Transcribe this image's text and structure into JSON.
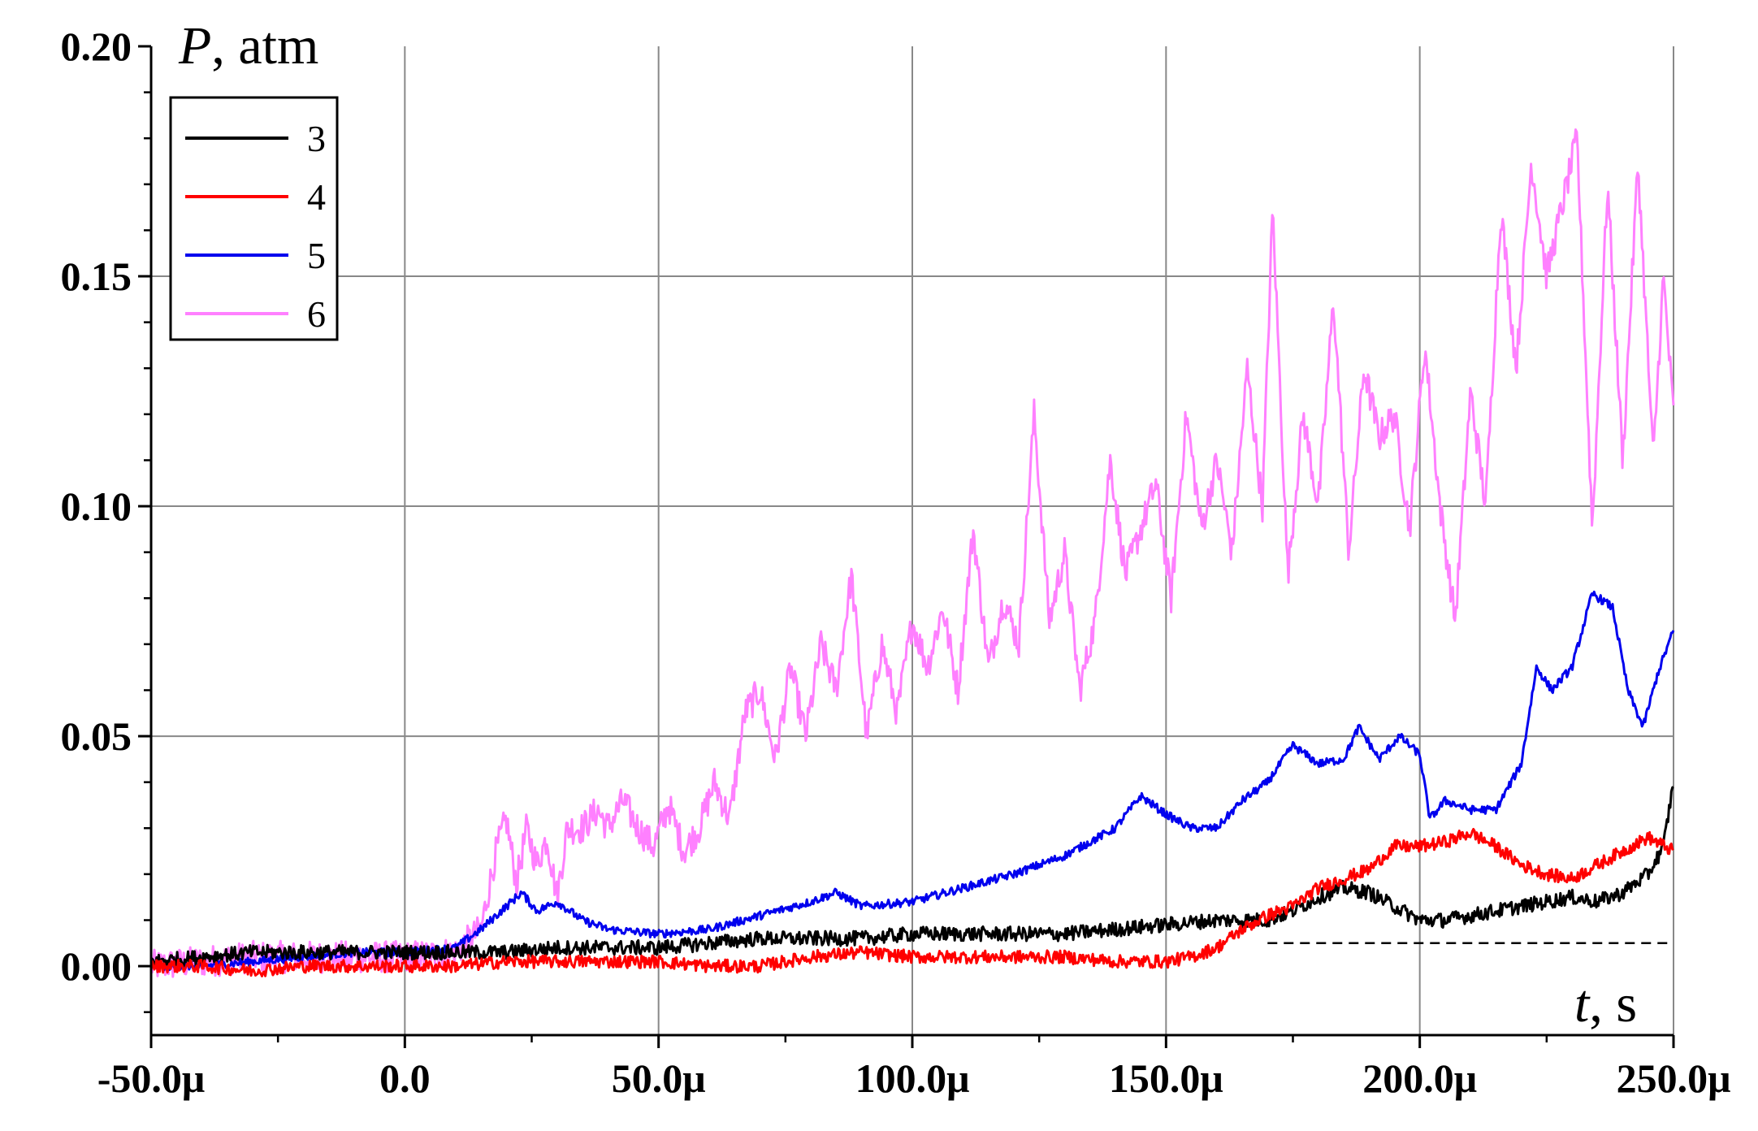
{
  "chart_data": {
    "type": "line",
    "ylabel_symbol": "P",
    "ylabel_unit": ", atm",
    "xlabel_symbol": "t",
    "xlabel_unit": ", s",
    "xlim": [
      -5e-05,
      0.00025
    ],
    "ylim": [
      -0.015,
      0.2
    ],
    "x_ticks": [
      -5e-05,
      0,
      5e-05,
      0.0001,
      0.00015,
      0.0002,
      0.00025
    ],
    "x_tick_labels": [
      "-50.0μ",
      "0.0",
      "50.0μ",
      "100.0μ",
      "150.0μ",
      "200.0μ",
      "250.0μ"
    ],
    "y_ticks": [
      0.0,
      0.05,
      0.1,
      0.15,
      0.2
    ],
    "y_tick_labels": [
      "0.00",
      "0.05",
      "0.10",
      "0.15",
      "0.20"
    ],
    "grid": true,
    "legend_position": "top-left",
    "reference_line": {
      "y": 0.005,
      "style": "dashed",
      "x_from": 0.00017,
      "x_to": 0.00025
    },
    "series": [
      {
        "name": "3",
        "color": "#000000",
        "x_us": [
          -50,
          -40,
          -30,
          -20,
          -10,
          0,
          10,
          20,
          30,
          40,
          50,
          60,
          70,
          80,
          90,
          100,
          110,
          120,
          130,
          140,
          150,
          160,
          170,
          175,
          180,
          185,
          190,
          195,
          200,
          205,
          210,
          215,
          220,
          225,
          230,
          235,
          240,
          245,
          248,
          250
        ],
        "values": [
          0.001,
          0.002,
          0.003,
          0.003,
          0.003,
          0.003,
          0.003,
          0.003,
          0.004,
          0.004,
          0.004,
          0.005,
          0.006,
          0.006,
          0.006,
          0.007,
          0.007,
          0.007,
          0.007,
          0.008,
          0.009,
          0.01,
          0.01,
          0.012,
          0.015,
          0.017,
          0.016,
          0.013,
          0.01,
          0.01,
          0.011,
          0.012,
          0.013,
          0.014,
          0.015,
          0.014,
          0.016,
          0.02,
          0.026,
          0.04
        ]
      },
      {
        "name": "4",
        "color": "#ff0000",
        "x_us": [
          -50,
          -40,
          -30,
          -20,
          -10,
          0,
          10,
          20,
          30,
          40,
          50,
          60,
          70,
          80,
          90,
          100,
          110,
          120,
          130,
          140,
          150,
          155,
          160,
          165,
          170,
          175,
          180,
          185,
          190,
          195,
          200,
          205,
          210,
          215,
          220,
          225,
          230,
          235,
          240,
          245,
          250
        ],
        "values": [
          0.0,
          0.0,
          -0.001,
          0.0,
          0.0,
          0.0,
          0.0,
          0.001,
          0.001,
          0.001,
          0.001,
          0.0,
          0.0,
          0.002,
          0.003,
          0.002,
          0.002,
          0.002,
          0.002,
          0.001,
          0.001,
          0.002,
          0.004,
          0.008,
          0.011,
          0.013,
          0.017,
          0.019,
          0.021,
          0.026,
          0.026,
          0.027,
          0.029,
          0.026,
          0.022,
          0.02,
          0.019,
          0.022,
          0.025,
          0.028,
          0.025
        ]
      },
      {
        "name": "5",
        "color": "#0000ee",
        "x_us": [
          -50,
          -40,
          -30,
          -20,
          -10,
          0,
          10,
          15,
          20,
          23,
          26,
          30,
          35,
          40,
          50,
          60,
          70,
          80,
          85,
          90,
          100,
          110,
          120,
          130,
          140,
          145,
          150,
          155,
          160,
          165,
          170,
          175,
          180,
          185,
          188,
          192,
          196,
          200,
          202,
          205,
          210,
          215,
          220,
          223,
          226,
          230,
          234,
          238,
          241,
          244,
          247,
          250
        ],
        "values": [
          0.0,
          0.0,
          0.001,
          0.002,
          0.003,
          0.003,
          0.004,
          0.008,
          0.013,
          0.016,
          0.012,
          0.014,
          0.01,
          0.008,
          0.007,
          0.008,
          0.011,
          0.014,
          0.016,
          0.013,
          0.014,
          0.017,
          0.02,
          0.024,
          0.03,
          0.037,
          0.033,
          0.03,
          0.03,
          0.036,
          0.04,
          0.048,
          0.044,
          0.045,
          0.052,
          0.045,
          0.05,
          0.046,
          0.032,
          0.036,
          0.034,
          0.034,
          0.044,
          0.065,
          0.06,
          0.065,
          0.081,
          0.078,
          0.06,
          0.052,
          0.064,
          0.073
        ]
      },
      {
        "name": "6",
        "color": "#ff80ff",
        "x_us": [
          -50,
          -40,
          -30,
          -20,
          -10,
          0,
          10,
          15,
          18,
          20,
          22,
          24,
          26,
          28,
          30,
          32,
          35,
          38,
          40,
          43,
          46,
          49,
          52,
          55,
          58,
          61,
          64,
          67,
          70,
          73,
          76,
          79,
          82,
          85,
          88,
          91,
          94,
          97,
          100,
          103,
          106,
          109,
          112,
          115,
          118,
          121,
          124,
          127,
          130,
          133,
          136,
          139,
          142,
          145,
          148,
          151,
          154,
          157,
          160,
          163,
          166,
          169,
          171,
          174,
          177,
          180,
          183,
          186,
          189,
          192,
          195,
          198,
          201,
          204,
          207,
          210,
          213,
          216,
          219,
          222,
          225,
          228,
          231,
          234,
          237,
          240,
          243,
          246,
          248,
          250
        ],
        "values": [
          0.0,
          0.001,
          0.002,
          0.002,
          0.002,
          0.002,
          0.003,
          0.008,
          0.025,
          0.032,
          0.018,
          0.03,
          0.022,
          0.028,
          0.015,
          0.03,
          0.03,
          0.034,
          0.03,
          0.036,
          0.03,
          0.026,
          0.035,
          0.025,
          0.03,
          0.04,
          0.032,
          0.055,
          0.06,
          0.045,
          0.065,
          0.05,
          0.07,
          0.06,
          0.085,
          0.05,
          0.07,
          0.055,
          0.075,
          0.065,
          0.078,
          0.06,
          0.095,
          0.065,
          0.08,
          0.07,
          0.12,
          0.075,
          0.09,
          0.06,
          0.075,
          0.11,
          0.085,
          0.095,
          0.105,
          0.08,
          0.12,
          0.095,
          0.11,
          0.09,
          0.13,
          0.1,
          0.165,
          0.085,
          0.12,
          0.1,
          0.145,
          0.09,
          0.13,
          0.115,
          0.12,
          0.095,
          0.135,
          0.1,
          0.075,
          0.125,
          0.1,
          0.165,
          0.13,
          0.175,
          0.15,
          0.165,
          0.18,
          0.095,
          0.17,
          0.11,
          0.175,
          0.11,
          0.15,
          0.12
        ]
      }
    ]
  }
}
